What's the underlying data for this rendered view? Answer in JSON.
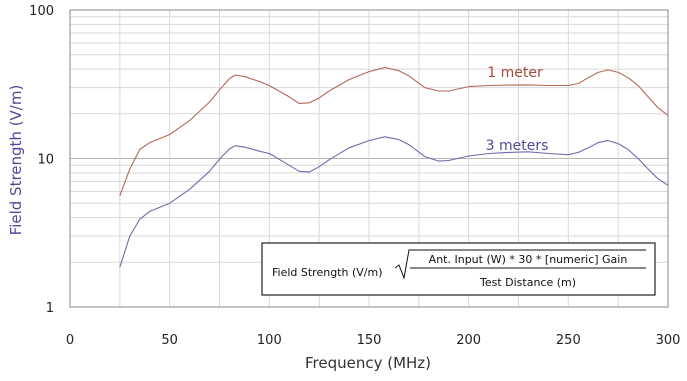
{
  "chart_data": {
    "type": "line",
    "title": "",
    "xlabel": "Frequency (MHz)",
    "ylabel": "Field Strength (V/m)",
    "xlim": [
      0,
      300
    ],
    "ylim": [
      1,
      100
    ],
    "y_scale": "log",
    "x_ticks": [
      "0",
      "50",
      "100",
      "150",
      "200",
      "250",
      "300"
    ],
    "y_ticks": [
      "1",
      "10",
      "100"
    ],
    "grid": true,
    "series": [
      {
        "name": "1 meter",
        "color": "#b5675a",
        "x": [
          25,
          30,
          35,
          40,
          50,
          60,
          70,
          75,
          80,
          83,
          88,
          95,
          100,
          110,
          115,
          120,
          125,
          130,
          140,
          150,
          158,
          165,
          170,
          178,
          185,
          190,
          200,
          210,
          220,
          230,
          240,
          250,
          255,
          260,
          265,
          270,
          275,
          280,
          285,
          290,
          295,
          300
        ],
        "values": [
          5.6,
          8.5,
          11.5,
          12.8,
          14.5,
          18,
          24,
          29,
          34.5,
          36.5,
          35.5,
          33,
          31,
          26,
          23.5,
          23.7,
          25.5,
          28.5,
          34,
          38.5,
          41,
          39,
          36,
          30,
          28.5,
          28.5,
          30.5,
          31,
          31.2,
          31.3,
          31,
          31,
          32,
          35,
          38,
          39.5,
          38,
          35,
          31,
          26,
          22,
          19.5
        ]
      },
      {
        "name": "3 meters",
        "color": "#6c6cae",
        "x": [
          25,
          30,
          35,
          40,
          50,
          60,
          70,
          75,
          80,
          83,
          88,
          95,
          100,
          110,
          115,
          120,
          125,
          130,
          140,
          150,
          158,
          165,
          170,
          178,
          185,
          190,
          200,
          210,
          220,
          230,
          240,
          250,
          255,
          260,
          265,
          270,
          275,
          280,
          285,
          290,
          295,
          300
        ],
        "values": [
          1.85,
          3.0,
          3.9,
          4.4,
          5.0,
          6.2,
          8.2,
          9.9,
          11.6,
          12.2,
          11.9,
          11.2,
          10.8,
          9.0,
          8.2,
          8.1,
          8.8,
          9.8,
          11.8,
          13.2,
          14.0,
          13.4,
          12.4,
          10.3,
          9.6,
          9.7,
          10.4,
          10.8,
          11.0,
          11.1,
          10.8,
          10.6,
          11.0,
          11.8,
          12.8,
          13.2,
          12.6,
          11.5,
          10.0,
          8.5,
          7.3,
          6.6
        ]
      }
    ],
    "annotations": {
      "series_labels": [
        "1 meter",
        "3 meters"
      ],
      "formula": {
        "prefix": "Field Strength (V/m)",
        "numerator": "Ant. Input (W) * 30 * [numeric] Gain",
        "denominator": "Test Distance (m)"
      }
    }
  }
}
